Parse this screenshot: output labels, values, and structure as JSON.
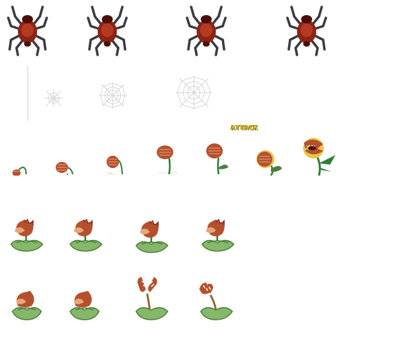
{
  "sheet": {
    "label_attack": "ATTACK",
    "colors": {
      "spider_body": "#8b2415",
      "spider_body_dark": "#4a0f09",
      "spider_leg": "#3a3a44",
      "web": "#d6d6d6",
      "petal": "#b5502d",
      "petal_light": "#e7a77a",
      "stem": "#2f7d36",
      "leaf": "#86b86a",
      "leaf_dark": "#4d7e3c",
      "yellow": "#e9c447"
    }
  }
}
